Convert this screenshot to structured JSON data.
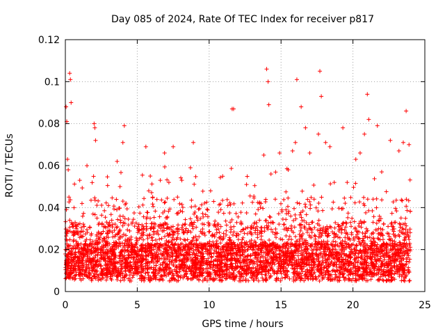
{
  "chart_data": {
    "type": "scatter",
    "title": "Day 085 of 2024, Rate Of TEC Index for receiver p817",
    "xlabel": "GPS time / hours",
    "ylabel": "ROTI / TECUs",
    "xlim": [
      0,
      25
    ],
    "ylim": [
      0,
      0.12
    ],
    "x_ticks": [
      "0",
      "5",
      "10",
      "15",
      "20",
      "25"
    ],
    "y_ticks": [
      "0",
      "0.02",
      "0.04",
      "0.06",
      "0.08",
      "0.1",
      "0.12"
    ],
    "grid": true,
    "legend": "none",
    "marker": "plus",
    "color": "#ff0000",
    "series": [
      {
        "x": [
          0.05,
          0.1,
          0.15,
          0.2,
          0.25,
          0.3,
          0.35,
          0.4,
          0.3,
          0.2,
          0.12,
          0.22,
          0.35,
          0.6,
          0.9,
          1.0,
          1.2,
          1.5,
          1.8,
          2.0,
          2.05,
          2.1,
          2.2,
          2.5,
          2.8,
          3.0,
          3.3,
          3.6,
          3.8,
          4.0,
          4.1,
          4.3,
          4.6,
          5.0,
          5.3,
          5.6,
          5.8,
          6.0,
          6.3,
          6.6,
          6.9,
          7.2,
          7.5,
          7.8,
          8.1,
          8.4,
          8.7,
          8.9,
          9.2,
          9.5,
          9.8,
          10.1,
          10.4,
          10.7,
          11.0,
          11.3,
          11.6,
          11.7,
          12.0,
          12.3,
          12.6,
          12.9,
          13.2,
          13.5,
          13.8,
          14.0,
          14.1,
          14.15,
          14.3,
          14.6,
          14.9,
          15.2,
          15.5,
          15.8,
          16.0,
          16.1,
          16.4,
          16.7,
          17.0,
          17.3,
          17.6,
          17.7,
          17.8,
          18.1,
          18.4,
          18.7,
          19.0,
          19.3,
          19.6,
          19.9,
          20.2,
          20.5,
          20.8,
          21.0,
          21.1,
          21.4,
          21.7,
          22.0,
          22.3,
          22.6,
          22.9,
          23.2,
          23.5,
          23.7,
          23.9
        ],
        "y": [
          0.088,
          0.081,
          0.063,
          0.058,
          0.045,
          0.104,
          0.101,
          0.09,
          0.034,
          0.022,
          0.012,
          0.015,
          0.009,
          0.01,
          0.016,
          0.053,
          0.01,
          0.011,
          0.015,
          0.08,
          0.078,
          0.072,
          0.035,
          0.02,
          0.013,
          0.041,
          0.026,
          0.062,
          0.05,
          0.071,
          0.079,
          0.024,
          0.019,
          0.011,
          0.012,
          0.069,
          0.048,
          0.018,
          0.01,
          0.053,
          0.066,
          0.052,
          0.069,
          0.045,
          0.053,
          0.03,
          0.059,
          0.071,
          0.034,
          0.016,
          0.011,
          0.048,
          0.015,
          0.01,
          0.026,
          0.041,
          0.087,
          0.087,
          0.015,
          0.02,
          0.051,
          0.01,
          0.028,
          0.034,
          0.065,
          0.106,
          0.1,
          0.089,
          0.056,
          0.044,
          0.066,
          0.019,
          0.058,
          0.067,
          0.071,
          0.101,
          0.088,
          0.078,
          0.066,
          0.044,
          0.075,
          0.105,
          0.093,
          0.071,
          0.069,
          0.052,
          0.031,
          0.078,
          0.052,
          0.02,
          0.063,
          0.066,
          0.075,
          0.094,
          0.082,
          0.033,
          0.079,
          0.057,
          0.021,
          0.072,
          0.016,
          0.067,
          0.071,
          0.086,
          0.07
        ]
      }
    ]
  }
}
